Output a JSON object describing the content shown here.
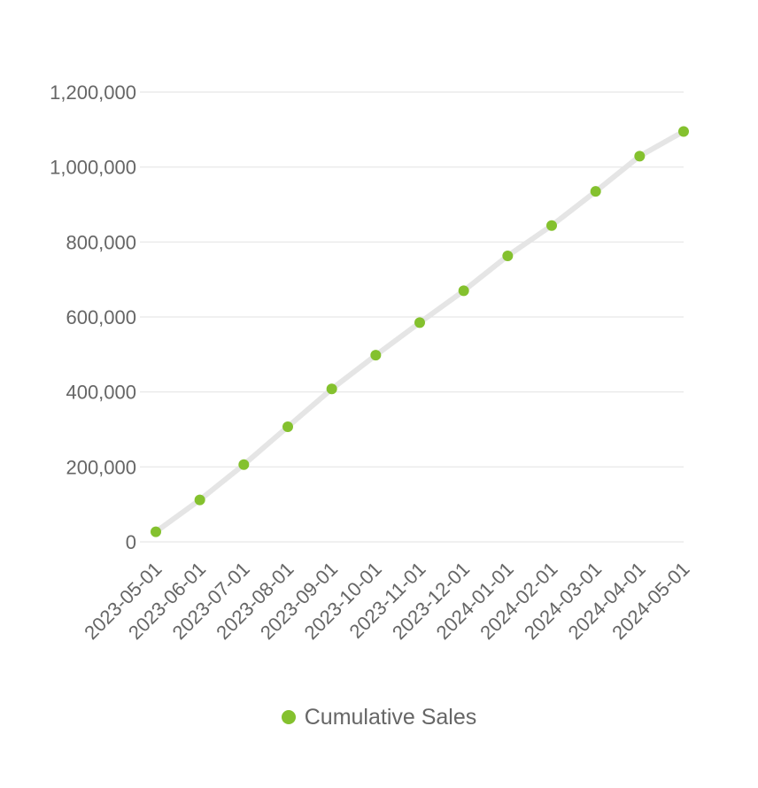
{
  "chart_data": {
    "type": "line",
    "title": "",
    "xlabel": "",
    "ylabel": "",
    "x": [
      "2023-05-01",
      "2023-06-01",
      "2023-07-01",
      "2023-08-01",
      "2023-09-01",
      "2023-10-01",
      "2023-11-01",
      "2023-12-01",
      "2024-01-01",
      "2024-02-01",
      "2024-03-01",
      "2024-04-01",
      "2024-05-01"
    ],
    "series": [
      {
        "name": "Cumulative Sales",
        "values": [
          27000,
          112000,
          206000,
          307000,
          408000,
          498000,
          585000,
          670000,
          763000,
          844000,
          935000,
          1029000,
          1095000
        ],
        "line_color": "#e5e5e5",
        "marker_color": "#84c12e"
      }
    ],
    "ylim": [
      0,
      1200000
    ],
    "y_ticks": [
      0,
      200000,
      400000,
      600000,
      800000,
      1000000,
      1200000
    ],
    "y_tick_labels": [
      "0",
      "200,000",
      "400,000",
      "600,000",
      "800,000",
      "1,000,000",
      "1,200,000"
    ],
    "grid": true,
    "grid_color": "#e6e6e6",
    "legend_position": "bottom"
  }
}
